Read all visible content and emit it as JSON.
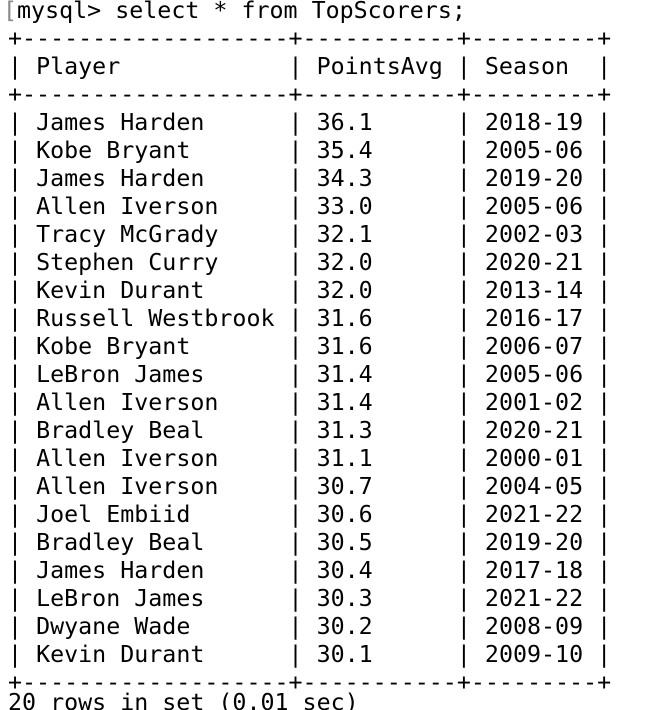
{
  "terminal": {
    "prompt": "mysql>",
    "command": "select * from TopScorers;",
    "columns": [
      "Player",
      "PointsAvg",
      "Season"
    ],
    "rows": [
      [
        "James Harden",
        "36.1",
        "2018-19"
      ],
      [
        "Kobe Bryant",
        "35.4",
        "2005-06"
      ],
      [
        "James Harden",
        "34.3",
        "2019-20"
      ],
      [
        "Allen Iverson",
        "33.0",
        "2005-06"
      ],
      [
        "Tracy McGrady",
        "32.1",
        "2002-03"
      ],
      [
        "Stephen Curry",
        "32.0",
        "2020-21"
      ],
      [
        "Kevin Durant",
        "32.0",
        "2013-14"
      ],
      [
        "Russell Westbrook",
        "31.6",
        "2016-17"
      ],
      [
        "Kobe Bryant",
        "31.6",
        "2006-07"
      ],
      [
        "LeBron James",
        "31.4",
        "2005-06"
      ],
      [
        "Allen Iverson",
        "31.4",
        "2001-02"
      ],
      [
        "Bradley Beal",
        "31.3",
        "2020-21"
      ],
      [
        "Allen Iverson",
        "31.1",
        "2000-01"
      ],
      [
        "Allen Iverson",
        "30.7",
        "2004-05"
      ],
      [
        "Joel Embiid",
        "30.6",
        "2021-22"
      ],
      [
        "Bradley Beal",
        "30.5",
        "2019-20"
      ],
      [
        "James Harden",
        "30.4",
        "2017-18"
      ],
      [
        "LeBron James",
        "30.3",
        "2021-22"
      ],
      [
        "Dwyane Wade",
        "30.2",
        "2008-09"
      ],
      [
        "Kevin Durant",
        "30.1",
        "2009-10"
      ]
    ],
    "result_summary": "20 rows in set (0.01 sec)"
  }
}
